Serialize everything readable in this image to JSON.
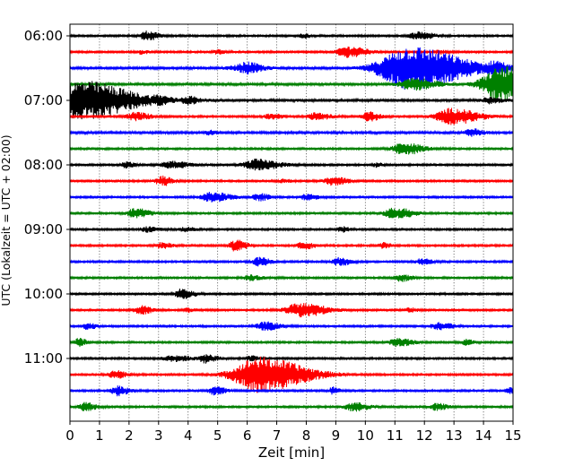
{
  "chart_data": {
    "type": "line",
    "title": "",
    "xlabel": "Zeit  [min]",
    "ylabel": "UTC (Lokalzeit = UTC + 02:00)",
    "xlim": [
      0,
      15
    ],
    "x_ticks": [
      "0",
      "1",
      "2",
      "3",
      "4",
      "5",
      "6",
      "7",
      "8",
      "9",
      "10",
      "11",
      "12",
      "13",
      "14",
      "15"
    ],
    "y_tick_labels": [
      "06:00",
      "07:00",
      "08:00",
      "09:00",
      "10:00",
      "11:00"
    ],
    "trace_interval_minutes": 15,
    "start_time": "06:00",
    "grid": "vertical dotted at each minute",
    "colors": [
      "#000000",
      "#ff0000",
      "#0000ff",
      "#008000"
    ],
    "traces": [
      {
        "start": "06:00",
        "color": "#000000",
        "baseline": 0.4,
        "events": [
          {
            "t": 2.6,
            "amp": 0.7,
            "width": 0.3
          },
          {
            "t": 7.9,
            "amp": 0.3,
            "width": 0.2
          },
          {
            "t": 11.8,
            "amp": 0.6,
            "width": 0.4
          }
        ]
      },
      {
        "start": "06:15",
        "color": "#ff0000",
        "baseline": 0.4,
        "events": [
          {
            "t": 2.4,
            "amp": 0.3,
            "width": 0.2
          },
          {
            "t": 5.0,
            "amp": 0.3,
            "width": 0.2
          },
          {
            "t": 9.4,
            "amp": 0.8,
            "width": 0.5
          },
          {
            "t": 12.5,
            "amp": 0.3,
            "width": 0.2
          }
        ]
      },
      {
        "start": "06:30",
        "color": "#0000ff",
        "baseline": 0.5,
        "events": [
          {
            "t": 6.0,
            "amp": 0.5,
            "width": 0.3
          },
          {
            "t": 5.8,
            "amp": 0.4,
            "width": 0.6
          },
          {
            "t": 11.5,
            "amp": 3.2,
            "width": 1.4
          },
          {
            "t": 14.4,
            "amp": 0.8,
            "width": 0.3
          }
        ]
      },
      {
        "start": "06:45",
        "color": "#008000",
        "baseline": 0.5,
        "events": [
          {
            "t": 11.6,
            "amp": 0.8,
            "width": 0.6
          },
          {
            "t": 14.6,
            "amp": 2.6,
            "width": 0.9
          }
        ]
      },
      {
        "start": "07:00",
        "color": "#000000",
        "baseline": 0.6,
        "events": [
          {
            "t": 0.4,
            "amp": 2.8,
            "width": 1.3
          },
          {
            "t": 3.0,
            "amp": 0.4,
            "width": 0.3
          },
          {
            "t": 4.0,
            "amp": 0.5,
            "width": 0.3
          },
          {
            "t": 14.2,
            "amp": 0.4,
            "width": 0.3
          }
        ]
      },
      {
        "start": "07:15",
        "color": "#ff0000",
        "baseline": 0.4,
        "events": [
          {
            "t": 2.2,
            "amp": 0.6,
            "width": 0.4
          },
          {
            "t": 6.8,
            "amp": 0.4,
            "width": 0.3
          },
          {
            "t": 8.3,
            "amp": 0.5,
            "width": 0.4
          },
          {
            "t": 10.1,
            "amp": 0.7,
            "width": 0.3
          },
          {
            "t": 12.9,
            "amp": 1.2,
            "width": 0.7
          }
        ]
      },
      {
        "start": "07:30",
        "color": "#0000ff",
        "baseline": 0.5,
        "events": [
          {
            "t": 4.7,
            "amp": 0.3,
            "width": 0.2
          },
          {
            "t": 13.6,
            "amp": 0.5,
            "width": 0.3
          }
        ]
      },
      {
        "start": "07:45",
        "color": "#008000",
        "baseline": 0.4,
        "events": [
          {
            "t": 11.3,
            "amp": 0.9,
            "width": 0.5
          }
        ]
      },
      {
        "start": "08:00",
        "color": "#000000",
        "baseline": 0.4,
        "events": [
          {
            "t": 1.9,
            "amp": 0.5,
            "width": 0.2
          },
          {
            "t": 3.4,
            "amp": 0.5,
            "width": 0.5
          },
          {
            "t": 6.3,
            "amp": 0.8,
            "width": 0.6
          },
          {
            "t": 10.4,
            "amp": 0.3,
            "width": 0.2
          }
        ]
      },
      {
        "start": "08:15",
        "color": "#ff0000",
        "baseline": 0.4,
        "events": [
          {
            "t": 3.1,
            "amp": 0.7,
            "width": 0.3
          },
          {
            "t": 7.2,
            "amp": 0.3,
            "width": 0.2
          },
          {
            "t": 8.9,
            "amp": 0.6,
            "width": 0.4
          }
        ]
      },
      {
        "start": "08:30",
        "color": "#0000ff",
        "baseline": 0.4,
        "events": [
          {
            "t": 4.8,
            "amp": 0.7,
            "width": 0.5
          },
          {
            "t": 6.4,
            "amp": 0.5,
            "width": 0.3
          },
          {
            "t": 8.0,
            "amp": 0.4,
            "width": 0.3
          }
        ]
      },
      {
        "start": "08:45",
        "color": "#008000",
        "baseline": 0.4,
        "events": [
          {
            "t": 2.2,
            "amp": 0.7,
            "width": 0.4
          },
          {
            "t": 11.0,
            "amp": 0.8,
            "width": 0.5
          }
        ]
      },
      {
        "start": "09:00",
        "color": "#000000",
        "baseline": 0.4,
        "events": [
          {
            "t": 2.6,
            "amp": 0.4,
            "width": 0.3
          },
          {
            "t": 3.9,
            "amp": 0.3,
            "width": 0.3
          },
          {
            "t": 9.2,
            "amp": 0.4,
            "width": 0.2
          }
        ]
      },
      {
        "start": "09:15",
        "color": "#ff0000",
        "baseline": 0.4,
        "events": [
          {
            "t": 3.1,
            "amp": 0.4,
            "width": 0.3
          },
          {
            "t": 5.6,
            "amp": 0.8,
            "width": 0.3
          },
          {
            "t": 7.9,
            "amp": 0.5,
            "width": 0.3
          },
          {
            "t": 10.6,
            "amp": 0.4,
            "width": 0.2
          }
        ]
      },
      {
        "start": "09:30",
        "color": "#0000ff",
        "baseline": 0.4,
        "events": [
          {
            "t": 6.4,
            "amp": 0.6,
            "width": 0.3
          },
          {
            "t": 9.1,
            "amp": 0.6,
            "width": 0.3
          },
          {
            "t": 11.9,
            "amp": 0.4,
            "width": 0.3
          }
        ]
      },
      {
        "start": "09:45",
        "color": "#008000",
        "baseline": 0.4,
        "events": [
          {
            "t": 6.1,
            "amp": 0.4,
            "width": 0.3
          },
          {
            "t": 11.2,
            "amp": 0.5,
            "width": 0.3
          }
        ]
      },
      {
        "start": "10:00",
        "color": "#000000",
        "baseline": 0.4,
        "events": [
          {
            "t": 3.8,
            "amp": 0.8,
            "width": 0.3
          }
        ]
      },
      {
        "start": "10:15",
        "color": "#ff0000",
        "baseline": 0.4,
        "events": [
          {
            "t": 2.4,
            "amp": 0.6,
            "width": 0.3
          },
          {
            "t": 4.0,
            "amp": 0.3,
            "width": 0.2
          },
          {
            "t": 7.8,
            "amp": 1.0,
            "width": 0.7
          },
          {
            "t": 11.5,
            "amp": 0.3,
            "width": 0.2
          }
        ]
      },
      {
        "start": "10:30",
        "color": "#0000ff",
        "baseline": 0.4,
        "events": [
          {
            "t": 0.6,
            "amp": 0.5,
            "width": 0.2
          },
          {
            "t": 6.6,
            "amp": 0.6,
            "width": 0.4
          },
          {
            "t": 12.5,
            "amp": 0.5,
            "width": 0.4
          }
        ]
      },
      {
        "start": "10:45",
        "color": "#008000",
        "baseline": 0.4,
        "events": [
          {
            "t": 0.3,
            "amp": 0.6,
            "width": 0.2
          },
          {
            "t": 11.1,
            "amp": 0.6,
            "width": 0.4
          },
          {
            "t": 13.4,
            "amp": 0.4,
            "width": 0.2
          }
        ]
      },
      {
        "start": "11:00",
        "color": "#000000",
        "baseline": 0.4,
        "events": [
          {
            "t": 3.5,
            "amp": 0.4,
            "width": 0.5
          },
          {
            "t": 4.6,
            "amp": 0.6,
            "width": 0.3
          },
          {
            "t": 6.1,
            "amp": 0.4,
            "width": 0.2
          }
        ]
      },
      {
        "start": "11:15",
        "color": "#ff0000",
        "baseline": 0.4,
        "events": [
          {
            "t": 1.5,
            "amp": 0.6,
            "width": 0.3
          },
          {
            "t": 6.4,
            "amp": 2.6,
            "width": 1.2
          }
        ]
      },
      {
        "start": "11:30",
        "color": "#0000ff",
        "baseline": 0.4,
        "events": [
          {
            "t": 1.6,
            "amp": 0.7,
            "width": 0.3
          },
          {
            "t": 4.9,
            "amp": 0.6,
            "width": 0.3
          },
          {
            "t": 8.9,
            "amp": 0.5,
            "width": 0.2
          },
          {
            "t": 14.9,
            "amp": 0.4,
            "width": 0.2
          }
        ]
      },
      {
        "start": "11:45",
        "color": "#008000",
        "baseline": 0.4,
        "events": [
          {
            "t": 0.5,
            "amp": 0.6,
            "width": 0.3
          },
          {
            "t": 9.6,
            "amp": 0.6,
            "width": 0.4
          },
          {
            "t": 12.4,
            "amp": 0.5,
            "width": 0.3
          }
        ]
      }
    ]
  }
}
